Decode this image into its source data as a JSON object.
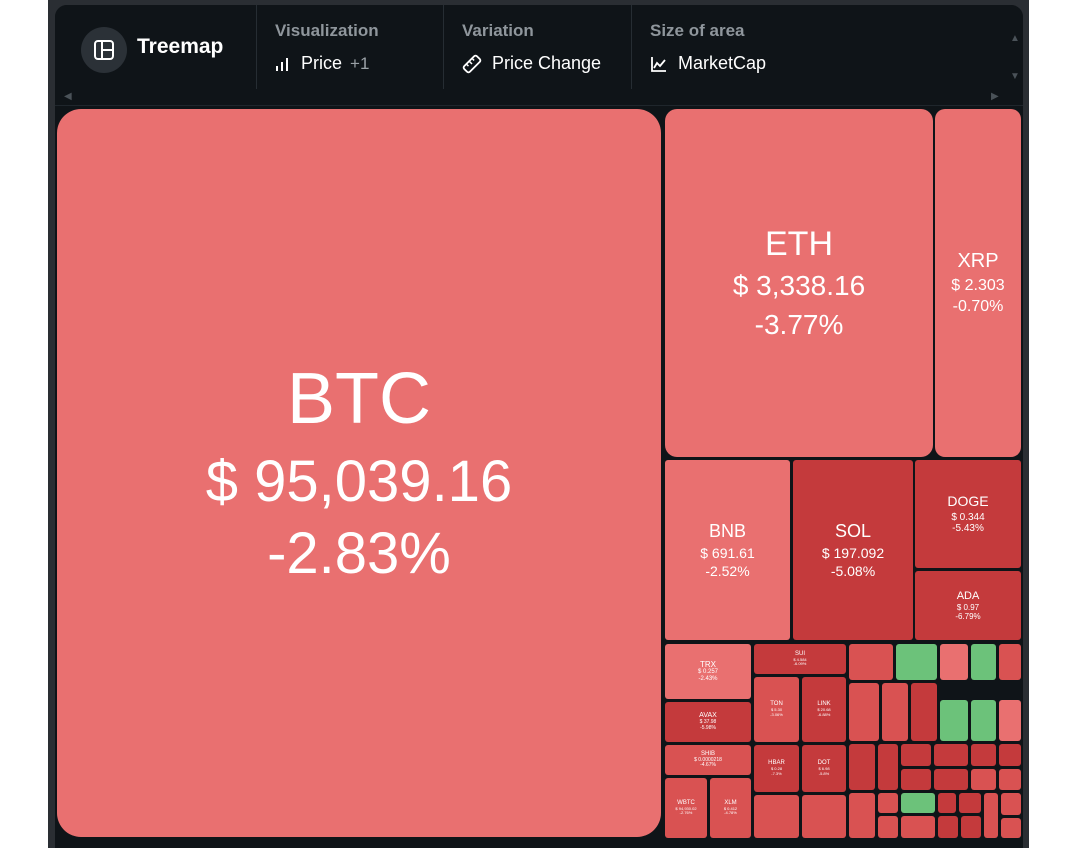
{
  "toolbar": {
    "title": "Treemap",
    "groups": [
      {
        "label": "Visualization",
        "value": "Price",
        "extra": "+1",
        "icon": "bar-chart-icon"
      },
      {
        "label": "Variation",
        "value": "Price Change",
        "icon": "ruler-icon"
      },
      {
        "label": "Size of area",
        "value": "MarketCap",
        "icon": "area-chart-icon"
      }
    ]
  },
  "colors": {
    "panel": "#0f1418",
    "down_light": "#e97070",
    "down_mid": "#d95252",
    "down_dark": "#c43a3c",
    "up": "#6cc27a"
  },
  "tiles": [
    {
      "symbol": "BTC",
      "price": "$ 95,039.16",
      "change": "-2.83%"
    },
    {
      "symbol": "ETH",
      "price": "$ 3,338.16",
      "change": "-3.77%"
    },
    {
      "symbol": "XRP",
      "price": "$ 2.303",
      "change": "-0.70%"
    },
    {
      "symbol": "BNB",
      "price": "$ 691.61",
      "change": "-2.52%"
    },
    {
      "symbol": "SOL",
      "price": "$ 197.092",
      "change": "-5.08%"
    },
    {
      "symbol": "DOGE",
      "price": "$ 0.344",
      "change": "-5.43%"
    },
    {
      "symbol": "ADA",
      "price": "$ 0.97",
      "change": "-6.79%"
    },
    {
      "symbol": "TRX",
      "price": "$ 0.257",
      "change": "-2.43%"
    },
    {
      "symbol": "AVAX",
      "price": "$ 37.98",
      "change": "-5.98%"
    },
    {
      "symbol": "SHIB",
      "price": "$ 0.0000218",
      "change": "-4.67%"
    },
    {
      "symbol": "WBTC",
      "price": "$ 94,930.02",
      "change": "-2.76%"
    },
    {
      "symbol": "XLM",
      "price": "$ 0.412",
      "change": "-4.78%"
    },
    {
      "symbol": "SUI",
      "price": "$ 4.584",
      "change": "-6.09%"
    },
    {
      "symbol": "TON",
      "price": "$ 5.30",
      "change": "-3.06%"
    },
    {
      "symbol": "LINK",
      "price": "$ 20.68",
      "change": "-6.88%"
    },
    {
      "symbol": "HBAR",
      "price": "$ 0.28",
      "change": "-7.3%"
    },
    {
      "symbol": "DOT",
      "price": "$ 6.98",
      "change": "-5.8%"
    }
  ]
}
